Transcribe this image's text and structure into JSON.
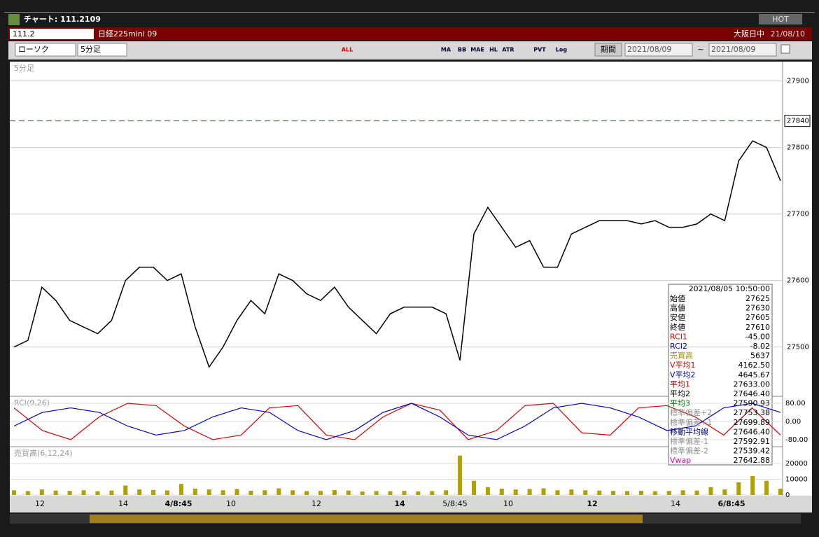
{
  "window": {
    "title": "チャート: 111.2109",
    "hot": "HOT"
  },
  "symbol_bar": {
    "code": "111.2",
    "name": "日経225mini 09",
    "session": "大阪日中",
    "date": "21/08/10"
  },
  "toolbar": {
    "chart_style": "ローソク",
    "interval": "5分足",
    "buttons": [
      "ALL",
      "MA",
      "BB",
      "MAE",
      "HL",
      "ATR",
      "PVT",
      "Log"
    ],
    "period_label": "期間",
    "from": "2021/08/09",
    "separator": "~",
    "to": "2021/08/09"
  },
  "price_panel": {
    "label": "5分足",
    "ylim": [
      27427,
      27927
    ],
    "yticks": [
      27500,
      27600,
      27700,
      27800,
      27900
    ],
    "current": 27840,
    "color": "#000000",
    "values": [
      27500,
      27510,
      27590,
      27570,
      27540,
      27530,
      27520,
      27540,
      27600,
      27620,
      27620,
      27600,
      27610,
      27530,
      27470,
      27500,
      27540,
      27570,
      27550,
      27610,
      27600,
      27580,
      27570,
      27590,
      27560,
      27540,
      27520,
      27550,
      27560,
      27560,
      27560,
      27550,
      27480,
      27670,
      27710,
      27680,
      27650,
      27660,
      27620,
      27620,
      27670,
      27680,
      27690,
      27690,
      27690,
      27685,
      27690,
      27680,
      27680,
      27685,
      27700,
      27690,
      27780,
      27810,
      27800,
      27750
    ]
  },
  "rci_panel": {
    "label": "RCI(9,26)",
    "ylim": [
      -108,
      108
    ],
    "yticks": [
      {
        "value": 80,
        "label": "80.00"
      },
      {
        "value": 0,
        "label": "0.00"
      },
      {
        "value": -80,
        "label": "-80.00"
      }
    ],
    "series": [
      {
        "color": "#d00000",
        "values": [
          60,
          -40,
          -80,
          20,
          80,
          70,
          -20,
          -80,
          -60,
          60,
          70,
          -60,
          -80,
          20,
          80,
          50,
          -80,
          -40,
          70,
          80,
          -50,
          -60,
          60,
          70,
          20,
          -60,
          60,
          -60
        ]
      },
      {
        "color": "#0000c0",
        "values": [
          -20,
          40,
          60,
          40,
          -20,
          -60,
          -40,
          20,
          60,
          40,
          -40,
          -80,
          -40,
          40,
          80,
          20,
          -60,
          -80,
          -20,
          60,
          80,
          60,
          20,
          -40,
          -20,
          60,
          80,
          40
        ]
      }
    ]
  },
  "volume_panel": {
    "label": "売買高(6,12,24)",
    "ylim": [
      0,
      29800
    ],
    "yticks": [
      0,
      10000,
      20000
    ],
    "color": "#b0a000",
    "values": [
      3000,
      2500,
      3500,
      2800,
      2600,
      3000,
      2400,
      2800,
      6000,
      3500,
      3200,
      2900,
      7000,
      4000,
      3500,
      3000,
      3800,
      2700,
      3000,
      4200,
      3000,
      2500,
      2600,
      3100,
      2800,
      2200,
      2500,
      2400,
      2600,
      2300,
      2500,
      3000,
      25000,
      9000,
      5000,
      4000,
      3500,
      3800,
      4200,
      3000,
      3500,
      3000,
      2800,
      2600,
      2500,
      2700,
      2400,
      2600,
      3000,
      2800,
      5000,
      3500,
      8000,
      12000,
      9000,
      4000
    ]
  },
  "x_axis": {
    "labels": [
      "12",
      "14",
      "4/8:45",
      "10",
      "12",
      "14",
      "5/8:45",
      "10",
      "12",
      "14",
      "6/8:45"
    ]
  },
  "info": {
    "header": "2021/08/05 10:50:00",
    "rows": [
      {
        "label": "始値",
        "value": "27625",
        "color": "#000000"
      },
      {
        "label": "高値",
        "value": "27630",
        "color": "#000000"
      },
      {
        "label": "安値",
        "value": "27605",
        "color": "#000000"
      },
      {
        "label": "終値",
        "value": "27610",
        "color": "#000000"
      },
      {
        "label": "RCI1",
        "value": "-45.00",
        "color": "#d00000"
      },
      {
        "label": "RCI2",
        "value": "-8.02",
        "color": "#0000c0"
      },
      {
        "label": "売買高",
        "value": "5637",
        "color": "#a09000"
      },
      {
        "label": "V平均1",
        "value": "4162.50",
        "color": "#d00000"
      },
      {
        "label": "V平均2",
        "value": "4645.67",
        "color": "#0000c0"
      },
      {
        "label": "平均1",
        "value": "27633.00",
        "color": "#d00000"
      },
      {
        "label": "平均2",
        "value": "27646.40",
        "color": "#000000"
      },
      {
        "label": "平均3",
        "value": "27590.93",
        "color": "#008000"
      },
      {
        "label": "標準偏差+2",
        "value": "27753.38",
        "color": "#909090"
      },
      {
        "label": "標準偏差+1",
        "value": "27699.89",
        "color": "#909090"
      },
      {
        "label": "移動平均線",
        "value": "27646.40",
        "color": "#000080"
      },
      {
        "label": "標準偏差-1",
        "value": "27592.91",
        "color": "#909090"
      },
      {
        "label": "標準偏差-2",
        "value": "27539.42",
        "color": "#909090"
      },
      {
        "label": "Vwap",
        "value": "27642.88",
        "color": "#e000a0"
      }
    ]
  }
}
